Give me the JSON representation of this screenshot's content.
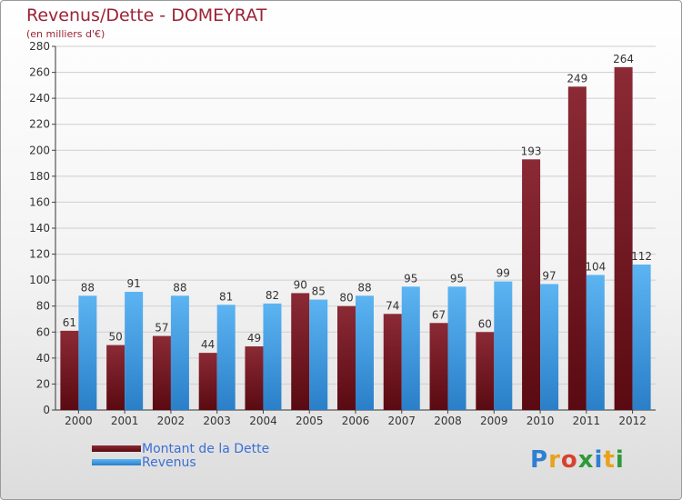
{
  "title": "Revenus/Dette - DOMEYRAT",
  "subtitle": "(en milliers d'€)",
  "chart_data": {
    "type": "bar",
    "categories": [
      "2000",
      "2001",
      "2002",
      "2003",
      "2004",
      "2005",
      "2006",
      "2007",
      "2008",
      "2009",
      "2010",
      "2011",
      "2012"
    ],
    "series": [
      {
        "name": "Montant de la Dette",
        "color": "#7a1a24",
        "values": [
          61,
          50,
          57,
          44,
          49,
          90,
          80,
          74,
          67,
          60,
          193,
          249,
          264
        ]
      },
      {
        "name": "Revenus",
        "color": "#3f9ee6",
        "values": [
          88,
          91,
          88,
          81,
          82,
          85,
          88,
          95,
          95,
          99,
          97,
          104,
          112
        ]
      }
    ],
    "ylim": [
      0,
      280
    ],
    "yticks": [
      0,
      20,
      40,
      60,
      80,
      100,
      120,
      140,
      160,
      180,
      200,
      220,
      240,
      260,
      280
    ],
    "grid": true,
    "legend": "bottom-left"
  },
  "logo": {
    "letters": [
      {
        "ch": "P",
        "color": "#2f7fd3"
      },
      {
        "ch": "r",
        "color": "#e8a21b"
      },
      {
        "ch": "o",
        "color": "#d8412f"
      },
      {
        "ch": "x",
        "color": "#2e9a3a"
      },
      {
        "ch": "i",
        "color": "#2f7fd3"
      },
      {
        "ch": "t",
        "color": "#e8a21b"
      },
      {
        "ch": "i",
        "color": "#2e9a3a"
      }
    ]
  }
}
